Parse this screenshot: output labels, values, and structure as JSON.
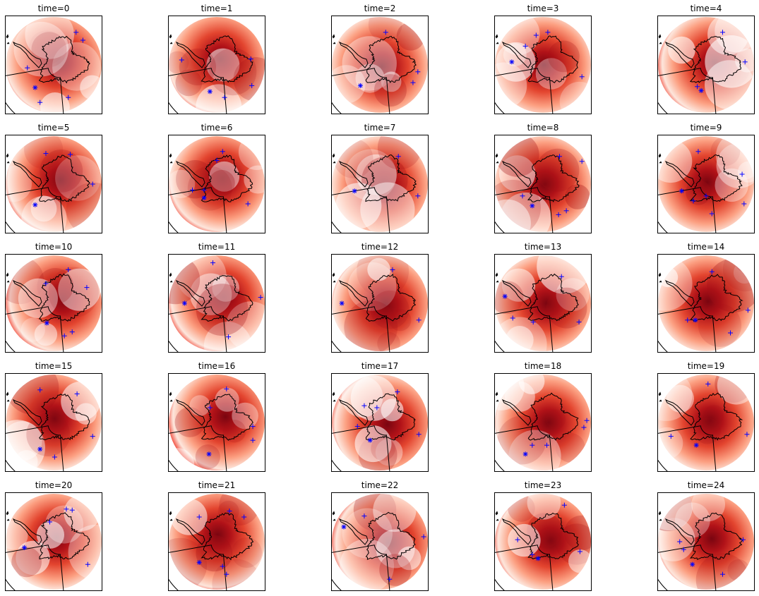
{
  "figure": {
    "colormap": "Reds",
    "marker_color": "#0000ff",
    "coast_color": "#000000",
    "panels": [
      {
        "title": "time=0",
        "time": 0,
        "field_seed": 1,
        "markers": [
          {
            "type": "plus",
            "x": 0.73,
            "y": 0.17
          },
          {
            "type": "plus",
            "x": 0.8,
            "y": 0.25
          },
          {
            "type": "plus",
            "x": 0.23,
            "y": 0.53
          },
          {
            "type": "star",
            "x": 0.31,
            "y": 0.73
          },
          {
            "type": "plus",
            "x": 0.65,
            "y": 0.83
          },
          {
            "type": "plus",
            "x": 0.36,
            "y": 0.88
          }
        ]
      },
      {
        "title": "time=1",
        "time": 1,
        "field_seed": 2,
        "markers": [
          {
            "type": "plus",
            "x": 0.85,
            "y": 0.44
          },
          {
            "type": "plus",
            "x": 0.86,
            "y": 0.71
          },
          {
            "type": "star",
            "x": 0.43,
            "y": 0.77
          },
          {
            "type": "plus",
            "x": 0.58,
            "y": 0.83
          },
          {
            "type": "plus",
            "x": 0.14,
            "y": 0.45
          }
        ]
      },
      {
        "title": "time=2",
        "time": 2,
        "field_seed": 3,
        "markers": [
          {
            "type": "plus",
            "x": 0.56,
            "y": 0.17
          },
          {
            "type": "plus",
            "x": 0.89,
            "y": 0.57
          },
          {
            "type": "plus",
            "x": 0.84,
            "y": 0.68
          },
          {
            "type": "star",
            "x": 0.3,
            "y": 0.71
          }
        ]
      },
      {
        "title": "time=3",
        "time": 3,
        "field_seed": 4,
        "markers": [
          {
            "type": "plus",
            "x": 0.55,
            "y": 0.17
          },
          {
            "type": "plus",
            "x": 0.43,
            "y": 0.2
          },
          {
            "type": "plus",
            "x": 0.32,
            "y": 0.31
          },
          {
            "type": "star",
            "x": 0.18,
            "y": 0.47
          },
          {
            "type": "plus",
            "x": 0.9,
            "y": 0.62
          }
        ]
      },
      {
        "title": "time=4",
        "time": 4,
        "field_seed": 5,
        "markers": [
          {
            "type": "plus",
            "x": 0.67,
            "y": 0.17
          },
          {
            "type": "plus",
            "x": 0.9,
            "y": 0.47
          },
          {
            "type": "star",
            "x": 0.45,
            "y": 0.76
          },
          {
            "type": "plus",
            "x": 0.41,
            "y": 0.72
          }
        ]
      },
      {
        "title": "time=5",
        "time": 5,
        "field_seed": 6,
        "markers": [
          {
            "type": "plus",
            "x": 0.42,
            "y": 0.19
          },
          {
            "type": "plus",
            "x": 0.67,
            "y": 0.2
          },
          {
            "type": "plus",
            "x": 0.9,
            "y": 0.5
          },
          {
            "type": "star",
            "x": 0.31,
            "y": 0.71
          }
        ]
      },
      {
        "title": "time=6",
        "time": 6,
        "field_seed": 7,
        "markers": [
          {
            "type": "plus",
            "x": 0.56,
            "y": 0.17
          },
          {
            "type": "plus",
            "x": 0.5,
            "y": 0.26
          },
          {
            "type": "plus",
            "x": 0.25,
            "y": 0.56
          },
          {
            "type": "plus",
            "x": 0.37,
            "y": 0.56
          },
          {
            "type": "star",
            "x": 0.37,
            "y": 0.64
          },
          {
            "type": "plus",
            "x": 0.82,
            "y": 0.7
          }
        ]
      },
      {
        "title": "time=7",
        "time": 7,
        "field_seed": 8,
        "markers": [
          {
            "type": "plus",
            "x": 0.69,
            "y": 0.22
          },
          {
            "type": "star",
            "x": 0.24,
            "y": 0.57
          },
          {
            "type": "plus",
            "x": 0.89,
            "y": 0.62
          }
        ]
      },
      {
        "title": "time=8",
        "time": 8,
        "field_seed": 9,
        "markers": [
          {
            "type": "plus",
            "x": 0.67,
            "y": 0.22
          },
          {
            "type": "plus",
            "x": 0.9,
            "y": 0.27
          },
          {
            "type": "plus",
            "x": 0.29,
            "y": 0.62
          },
          {
            "type": "star",
            "x": 0.39,
            "y": 0.72
          },
          {
            "type": "plus",
            "x": 0.74,
            "y": 0.77
          },
          {
            "type": "plus",
            "x": 0.66,
            "y": 0.81
          }
        ]
      },
      {
        "title": "time=9",
        "time": 9,
        "field_seed": 10,
        "markers": [
          {
            "type": "plus",
            "x": 0.42,
            "y": 0.17
          },
          {
            "type": "plus",
            "x": 0.87,
            "y": 0.4
          },
          {
            "type": "plus",
            "x": 0.5,
            "y": 0.62
          },
          {
            "type": "star",
            "x": 0.25,
            "y": 0.57
          },
          {
            "type": "plus",
            "x": 0.37,
            "y": 0.67
          },
          {
            "type": "plus",
            "x": 0.89,
            "y": 0.7
          },
          {
            "type": "plus",
            "x": 0.56,
            "y": 0.8
          }
        ]
      },
      {
        "title": "time=10",
        "time": 10,
        "field_seed": 11,
        "markers": [
          {
            "type": "plus",
            "x": 0.65,
            "y": 0.16
          },
          {
            "type": "plus",
            "x": 0.42,
            "y": 0.3
          },
          {
            "type": "plus",
            "x": 0.84,
            "y": 0.34
          },
          {
            "type": "star",
            "x": 0.43,
            "y": 0.7
          },
          {
            "type": "plus",
            "x": 0.69,
            "y": 0.79
          },
          {
            "type": "plus",
            "x": 0.61,
            "y": 0.83
          }
        ]
      },
      {
        "title": "time=11",
        "time": 11,
        "field_seed": 12,
        "markers": [
          {
            "type": "plus",
            "x": 0.46,
            "y": 0.09
          },
          {
            "type": "plus",
            "x": 0.95,
            "y": 0.44
          },
          {
            "type": "star",
            "x": 0.17,
            "y": 0.5
          },
          {
            "type": "plus",
            "x": 0.62,
            "y": 0.84
          }
        ]
      },
      {
        "title": "time=12",
        "time": 12,
        "field_seed": 13,
        "markers": [
          {
            "type": "plus",
            "x": 0.63,
            "y": 0.16
          },
          {
            "type": "star",
            "x": 0.11,
            "y": 0.5
          },
          {
            "type": "plus",
            "x": 0.9,
            "y": 0.67
          }
        ]
      },
      {
        "title": "time=13",
        "time": 13,
        "field_seed": 14,
        "markers": [
          {
            "type": "plus",
            "x": 0.69,
            "y": 0.23
          },
          {
            "type": "star",
            "x": 0.11,
            "y": 0.43
          },
          {
            "type": "plus",
            "x": 0.19,
            "y": 0.65
          },
          {
            "type": "plus",
            "x": 0.4,
            "y": 0.69
          },
          {
            "type": "plus",
            "x": 0.87,
            "y": 0.69
          }
        ]
      },
      {
        "title": "time=14",
        "time": 14,
        "field_seed": 15,
        "markers": [
          {
            "type": "plus",
            "x": 0.56,
            "y": 0.18
          },
          {
            "type": "plus",
            "x": 0.93,
            "y": 0.57
          },
          {
            "type": "star",
            "x": 0.39,
            "y": 0.67
          },
          {
            "type": "plus",
            "x": 0.31,
            "y": 0.67
          },
          {
            "type": "plus",
            "x": 0.75,
            "y": 0.8
          }
        ]
      },
      {
        "title": "time=15",
        "time": 15,
        "field_seed": 16,
        "markers": [
          {
            "type": "plus",
            "x": 0.36,
            "y": 0.17
          },
          {
            "type": "plus",
            "x": 0.74,
            "y": 0.21
          },
          {
            "type": "plus",
            "x": 0.9,
            "y": 0.64
          },
          {
            "type": "star",
            "x": 0.36,
            "y": 0.77
          },
          {
            "type": "plus",
            "x": 0.51,
            "y": 0.85
          }
        ]
      },
      {
        "title": "time=16",
        "time": 16,
        "field_seed": 17,
        "markers": [
          {
            "type": "plus",
            "x": 0.6,
            "y": 0.16
          },
          {
            "type": "plus",
            "x": 0.43,
            "y": 0.35
          },
          {
            "type": "plus",
            "x": 0.87,
            "y": 0.54
          },
          {
            "type": "plus",
            "x": 0.87,
            "y": 0.68
          },
          {
            "type": "star",
            "x": 0.42,
            "y": 0.82
          }
        ]
      },
      {
        "title": "time=17",
        "time": 17,
        "field_seed": 18,
        "markers": [
          {
            "type": "plus",
            "x": 0.68,
            "y": 0.19
          },
          {
            "type": "plus",
            "x": 0.34,
            "y": 0.33
          },
          {
            "type": "plus",
            "x": 0.47,
            "y": 0.35
          },
          {
            "type": "plus",
            "x": 0.27,
            "y": 0.54
          },
          {
            "type": "plus",
            "x": 0.9,
            "y": 0.62
          },
          {
            "type": "star",
            "x": 0.4,
            "y": 0.68
          }
        ]
      },
      {
        "title": "time=18",
        "time": 18,
        "field_seed": 19,
        "markers": [
          {
            "type": "plus",
            "x": 0.95,
            "y": 0.48
          },
          {
            "type": "plus",
            "x": 0.92,
            "y": 0.55
          },
          {
            "type": "plus",
            "x": 0.54,
            "y": 0.73
          },
          {
            "type": "plus",
            "x": 0.39,
            "y": 0.73
          },
          {
            "type": "star",
            "x": 0.32,
            "y": 0.82
          }
        ]
      },
      {
        "title": "time=19",
        "time": 19,
        "field_seed": 20,
        "markers": [
          {
            "type": "plus",
            "x": 0.52,
            "y": 0.11
          },
          {
            "type": "plus",
            "x": 0.14,
            "y": 0.64
          },
          {
            "type": "star",
            "x": 0.4,
            "y": 0.73
          },
          {
            "type": "plus",
            "x": 0.92,
            "y": 0.62
          }
        ]
      },
      {
        "title": "time=20",
        "time": 20,
        "field_seed": 21,
        "markers": [
          {
            "type": "plus",
            "x": 0.63,
            "y": 0.17
          },
          {
            "type": "plus",
            "x": 0.69,
            "y": 0.18
          },
          {
            "type": "plus",
            "x": 0.46,
            "y": 0.3
          },
          {
            "type": "star",
            "x": 0.2,
            "y": 0.56
          },
          {
            "type": "plus",
            "x": 0.85,
            "y": 0.73
          }
        ]
      },
      {
        "title": "time=21",
        "time": 21,
        "field_seed": 22,
        "markers": [
          {
            "type": "plus",
            "x": 0.32,
            "y": 0.25
          },
          {
            "type": "plus",
            "x": 0.63,
            "y": 0.19
          },
          {
            "type": "plus",
            "x": 0.78,
            "y": 0.25
          },
          {
            "type": "plus",
            "x": 0.56,
            "y": 0.75
          },
          {
            "type": "star",
            "x": 0.32,
            "y": 0.71
          },
          {
            "type": "plus",
            "x": 0.6,
            "y": 0.83
          }
        ]
      },
      {
        "title": "time=22",
        "time": 22,
        "field_seed": 23,
        "markers": [
          {
            "type": "plus",
            "x": 0.34,
            "y": 0.24
          },
          {
            "type": "star",
            "x": 0.13,
            "y": 0.35
          },
          {
            "type": "plus",
            "x": 0.95,
            "y": 0.45
          },
          {
            "type": "plus",
            "x": 0.6,
            "y": 0.88
          }
        ]
      },
      {
        "title": "time=23",
        "time": 23,
        "field_seed": 24,
        "markers": [
          {
            "type": "plus",
            "x": 0.72,
            "y": 0.13
          },
          {
            "type": "plus",
            "x": 0.24,
            "y": 0.48
          },
          {
            "type": "plus",
            "x": 0.39,
            "y": 0.63
          },
          {
            "type": "star",
            "x": 0.45,
            "y": 0.67
          },
          {
            "type": "plus",
            "x": 0.88,
            "y": 0.6
          }
        ]
      },
      {
        "title": "time=24",
        "time": 24,
        "field_seed": 25,
        "markers": [
          {
            "type": "plus",
            "x": 0.88,
            "y": 0.48
          },
          {
            "type": "plus",
            "x": 0.23,
            "y": 0.5
          },
          {
            "type": "plus",
            "x": 0.27,
            "y": 0.58
          },
          {
            "type": "star",
            "x": 0.36,
            "y": 0.73
          },
          {
            "type": "plus",
            "x": 0.67,
            "y": 0.83
          }
        ]
      }
    ]
  }
}
